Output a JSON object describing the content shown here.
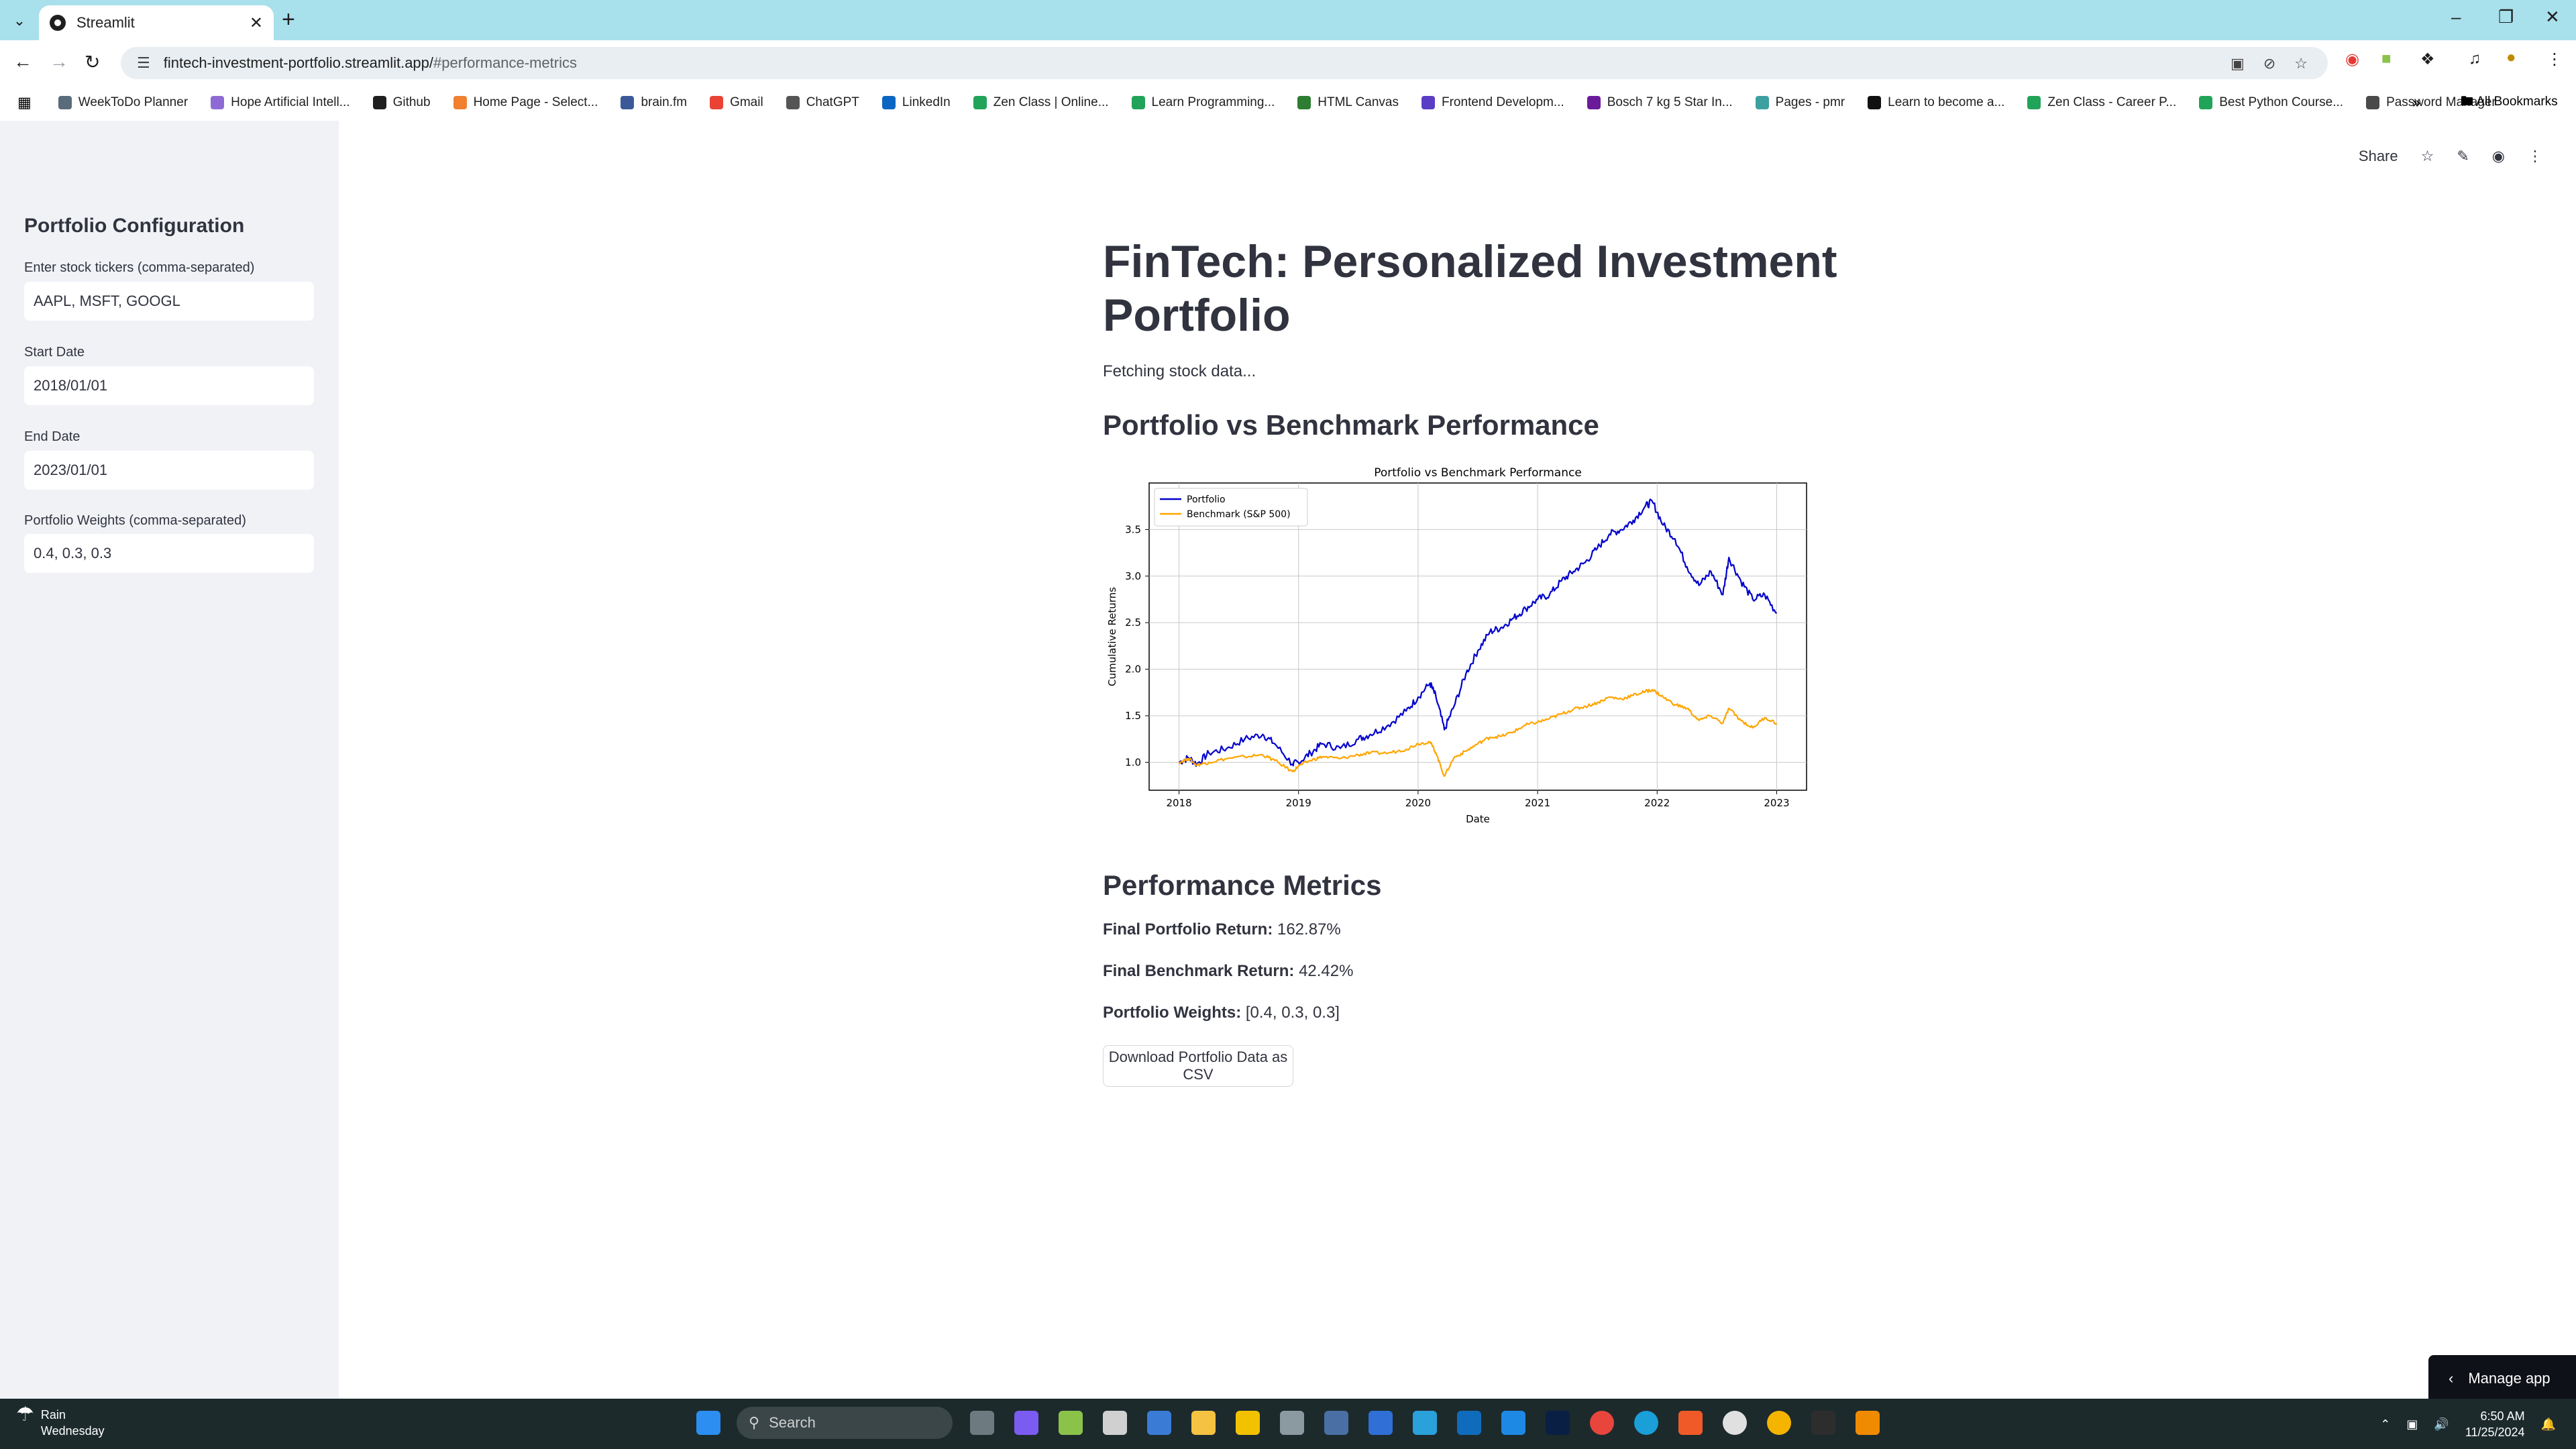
{
  "browser": {
    "tab_title": "Streamlit",
    "url_host": "fintech-investment-portfolio.streamlit.app/",
    "url_hash": "#performance-metrics",
    "bookmarks": [
      "WeekToDo Planner",
      "Hope Artificial Intell...",
      "Github",
      "Home Page - Select...",
      "brain.fm",
      "Gmail",
      "ChatGPT",
      "LinkedIn",
      "Zen Class | Online...",
      "Learn Programming...",
      "HTML Canvas",
      "Frontend Developm...",
      "Bosch 7 kg 5 Star In...",
      "Pages - pmr",
      "Learn to become a...",
      "Zen Class - Career P...",
      "Best Python Course...",
      "Password Manager"
    ],
    "all_bookmarks": "All Bookmarks",
    "bookmark_colors": [
      "#5a6b7b",
      "#8e6bd4",
      "#1f1f1f",
      "#f08030",
      "#3b5998",
      "#ea4335",
      "#555555",
      "#0a66c2",
      "#22a35a",
      "#22a35a",
      "#2e7d32",
      "#5b3cc4",
      "#6a1b9a",
      "#3ca0a0",
      "#111111",
      "#22a35a",
      "#22a35a",
      "#4a4a4a"
    ]
  },
  "sidebar": {
    "heading": "Portfolio Configuration",
    "tickers_label": "Enter stock tickers (comma-separated)",
    "tickers_value": "AAPL, MSFT, GOOGL",
    "start_label": "Start Date",
    "start_value": "2018/01/01",
    "end_label": "End Date",
    "end_value": "2023/01/01",
    "weights_label": "Portfolio Weights (comma-separated)",
    "weights_value": "0.4, 0.3, 0.3"
  },
  "header": {
    "share": "Share"
  },
  "main": {
    "title": "FinTech: Personalized Investment Portfolio",
    "status": "Fetching stock data...",
    "chart_heading": "Portfolio vs Benchmark Performance",
    "metrics_heading": "Performance Metrics",
    "final_portfolio_label": "Final Portfolio Return:",
    "final_portfolio_value": "162.87%",
    "final_benchmark_label": "Final Benchmark Return:",
    "final_benchmark_value": "42.42%",
    "weights_label": "Portfolio Weights:",
    "weights_value": "[0.4, 0.3, 0.3]",
    "download_label": "Download Portfolio Data as CSV",
    "manage_app": "Manage app"
  },
  "chart_data": {
    "type": "line",
    "title": "Portfolio vs Benchmark Performance",
    "xlabel": "Date",
    "ylabel": "Cumulative Returns",
    "xlim": [
      2018.0,
      2023.0
    ],
    "ylim": [
      0.7,
      4.0
    ],
    "xticks": [
      "2018",
      "2019",
      "2020",
      "2021",
      "2022",
      "2023"
    ],
    "yticks": [
      "1.0",
      "1.5",
      "2.0",
      "2.5",
      "3.0",
      "3.5"
    ],
    "grid": true,
    "legend": "top-left",
    "series": [
      {
        "name": "Portfolio",
        "color": "#0000cc",
        "x": [
          2018.0,
          2018.08,
          2018.15,
          2018.25,
          2018.4,
          2018.55,
          2018.7,
          2018.8,
          2018.95,
          2019.0,
          2019.1,
          2019.2,
          2019.35,
          2019.5,
          2019.6,
          2019.75,
          2019.9,
          2020.0,
          2020.1,
          2020.15,
          2020.22,
          2020.3,
          2020.4,
          2020.5,
          2020.6,
          2020.7,
          2020.8,
          2020.9,
          2021.0,
          2021.1,
          2021.2,
          2021.3,
          2021.4,
          2021.5,
          2021.6,
          2021.7,
          2021.8,
          2021.9,
          2021.96,
          2022.05,
          2022.15,
          2022.25,
          2022.35,
          2022.45,
          2022.55,
          2022.6,
          2022.7,
          2022.8,
          2022.9,
          2023.0
        ],
        "values": [
          1.0,
          1.05,
          0.98,
          1.1,
          1.15,
          1.25,
          1.3,
          1.2,
          0.98,
          1.0,
          1.1,
          1.2,
          1.15,
          1.25,
          1.3,
          1.4,
          1.55,
          1.7,
          1.85,
          1.7,
          1.35,
          1.6,
          1.95,
          2.2,
          2.4,
          2.45,
          2.55,
          2.65,
          2.75,
          2.8,
          2.95,
          3.05,
          3.15,
          3.3,
          3.45,
          3.5,
          3.6,
          3.75,
          3.8,
          3.55,
          3.4,
          3.1,
          2.9,
          3.05,
          2.8,
          3.2,
          2.95,
          2.75,
          2.8,
          2.6
        ]
      },
      {
        "name": "Benchmark (S&P 500)",
        "color": "#ffa500",
        "x": [
          2018.0,
          2018.08,
          2018.15,
          2018.25,
          2018.4,
          2018.55,
          2018.7,
          2018.8,
          2018.95,
          2019.0,
          2019.1,
          2019.2,
          2019.35,
          2019.5,
          2019.6,
          2019.75,
          2019.9,
          2020.0,
          2020.1,
          2020.15,
          2020.22,
          2020.3,
          2020.4,
          2020.5,
          2020.6,
          2020.7,
          2020.8,
          2020.9,
          2021.0,
          2021.1,
          2021.2,
          2021.3,
          2021.4,
          2021.5,
          2021.6,
          2021.7,
          2021.8,
          2021.9,
          2021.96,
          2022.05,
          2022.15,
          2022.25,
          2022.35,
          2022.45,
          2022.55,
          2022.6,
          2022.7,
          2022.8,
          2022.9,
          2023.0
        ],
        "values": [
          1.0,
          1.04,
          0.97,
          1.0,
          1.04,
          1.06,
          1.08,
          1.02,
          0.9,
          0.96,
          1.02,
          1.06,
          1.04,
          1.08,
          1.1,
          1.1,
          1.14,
          1.2,
          1.22,
          1.1,
          0.85,
          1.05,
          1.12,
          1.2,
          1.27,
          1.28,
          1.33,
          1.4,
          1.43,
          1.47,
          1.52,
          1.57,
          1.6,
          1.64,
          1.7,
          1.68,
          1.72,
          1.76,
          1.78,
          1.7,
          1.62,
          1.58,
          1.45,
          1.5,
          1.42,
          1.58,
          1.45,
          1.37,
          1.48,
          1.42
        ]
      }
    ]
  }
}
